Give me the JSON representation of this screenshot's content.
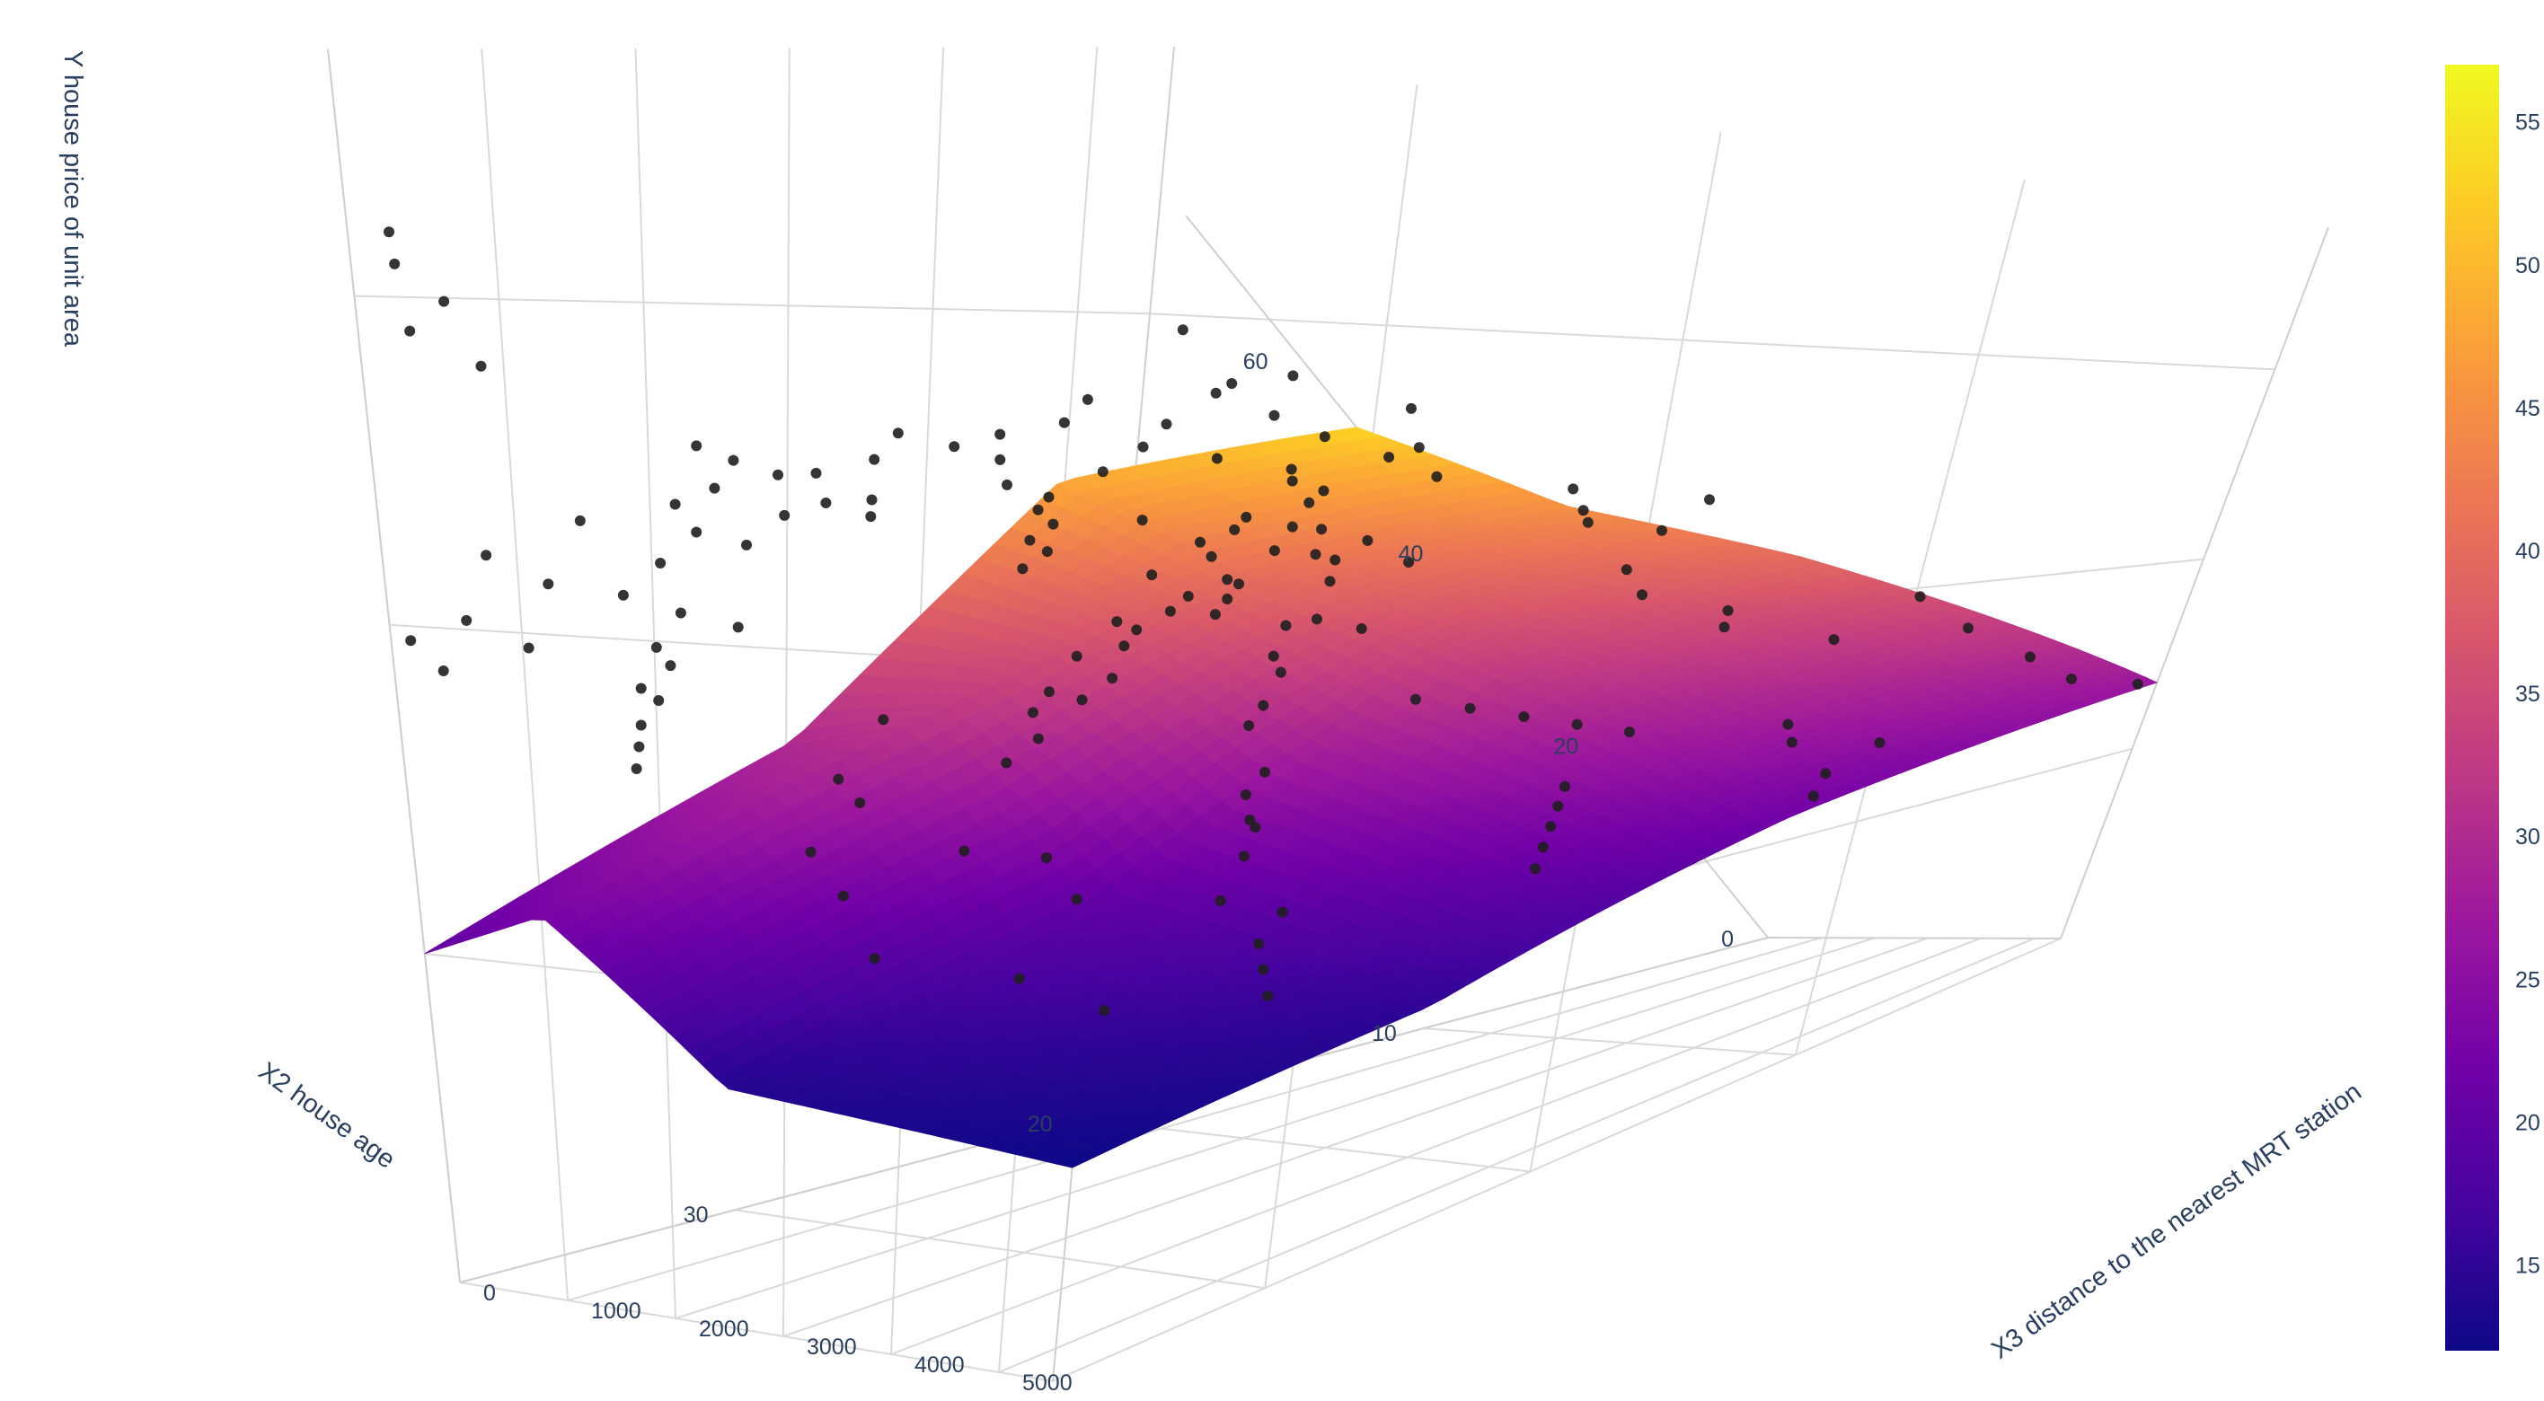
{
  "chart_data": {
    "type": "surface3d_with_scatter",
    "title": "",
    "axes": {
      "x": {
        "title": "X2 house age",
        "ticks": [
          10,
          20,
          30
        ],
        "range": [
          0,
          38
        ]
      },
      "y": {
        "title": "X3 distance to the nearest MRT station",
        "ticks": [
          0,
          1000,
          2000,
          3000,
          4000,
          5000
        ],
        "range": [
          0,
          5500
        ]
      },
      "z": {
        "title": "Y house price of unit area",
        "ticks": [
          0,
          20,
          40,
          60
        ],
        "range": [
          0,
          75
        ]
      }
    },
    "colorbar": {
      "colorscale": "plasma",
      "range": [
        12,
        57
      ],
      "ticks": [
        15,
        20,
        25,
        30,
        35,
        40,
        45,
        50,
        55
      ]
    },
    "surface": {
      "x": [
        0,
        12.5,
        25,
        38
      ],
      "y": [
        0,
        1000,
        2500,
        5500
      ],
      "z": [
        [
          53,
          45,
          40,
          27
        ],
        [
          48,
          41,
          34,
          22
        ],
        [
          30,
          32,
          20,
          15
        ],
        [
          20,
          23,
          14,
          12
        ]
      ]
    },
    "points": [
      [
        16.5,
        450,
        52
      ],
      [
        16.8,
        430,
        48
      ],
      [
        16.2,
        470,
        46
      ],
      [
        17.0,
        480,
        50
      ],
      [
        15.8,
        500,
        47
      ],
      [
        10.5,
        800,
        45
      ],
      [
        9.8,
        760,
        42
      ],
      [
        11.2,
        820,
        44
      ],
      [
        12.0,
        700,
        43
      ],
      [
        8.5,
        900,
        41
      ],
      [
        14.0,
        600,
        49
      ],
      [
        13.5,
        650,
        45
      ],
      [
        18.0,
        380,
        51
      ],
      [
        19.5,
        300,
        52
      ],
      [
        20.5,
        260,
        50
      ],
      [
        21.0,
        250,
        47
      ],
      [
        22.5,
        200,
        49
      ],
      [
        24.0,
        180,
        46
      ],
      [
        25.5,
        150,
        44
      ],
      [
        26.0,
        120,
        48
      ],
      [
        27.0,
        110,
        45
      ],
      [
        28.5,
        100,
        43
      ],
      [
        30.0,
        90,
        41
      ],
      [
        31.0,
        80,
        46
      ],
      [
        32.5,
        70,
        42
      ],
      [
        33.5,
        60,
        38
      ],
      [
        34.5,
        55,
        44
      ],
      [
        35.5,
        50,
        40
      ],
      [
        36.5,
        45,
        37
      ],
      [
        37.5,
        40,
        39
      ],
      [
        5.0,
        200,
        57
      ],
      [
        5.5,
        180,
        62
      ],
      [
        6.0,
        220,
        56
      ],
      [
        4.5,
        260,
        54
      ],
      [
        3.0,
        300,
        58
      ],
      [
        3.5,
        330,
        52
      ],
      [
        2.0,
        400,
        50
      ],
      [
        1.0,
        450,
        48
      ],
      [
        0.5,
        500,
        55
      ],
      [
        1.5,
        550,
        51
      ],
      [
        7.0,
        600,
        49
      ],
      [
        6.5,
        650,
        47
      ],
      [
        7.5,
        700,
        46
      ],
      [
        8.0,
        750,
        48
      ],
      [
        9.0,
        800,
        44
      ],
      [
        12.5,
        900,
        40
      ],
      [
        13.0,
        950,
        42
      ],
      [
        14.5,
        1000,
        39
      ],
      [
        15.5,
        1050,
        38
      ],
      [
        16.0,
        1100,
        41
      ],
      [
        17.5,
        1200,
        37
      ],
      [
        18.5,
        1300,
        36
      ],
      [
        19.0,
        1400,
        38
      ],
      [
        20.0,
        1500,
        34
      ],
      [
        21.5,
        1600,
        36
      ],
      [
        22.0,
        1700,
        33
      ],
      [
        23.5,
        1800,
        34
      ],
      [
        24.5,
        1900,
        31
      ],
      [
        25.0,
        2000,
        33
      ],
      [
        26.5,
        2100,
        30
      ],
      [
        10.0,
        1200,
        44
      ],
      [
        11.0,
        1300,
        42
      ],
      [
        9.5,
        1400,
        43
      ],
      [
        8.8,
        1500,
        41
      ],
      [
        12.2,
        1600,
        40
      ],
      [
        15.0,
        1800,
        37
      ],
      [
        16.5,
        2000,
        35
      ],
      [
        17.2,
        2200,
        34
      ],
      [
        18.8,
        2400,
        32
      ],
      [
        20.2,
        2600,
        31
      ],
      [
        14.0,
        2500,
        31
      ],
      [
        13.0,
        2700,
        30
      ],
      [
        12.0,
        2900,
        29
      ],
      [
        11.0,
        3100,
        28
      ],
      [
        10.0,
        3300,
        27
      ],
      [
        21.0,
        2900,
        28
      ],
      [
        22.5,
        3100,
        27
      ],
      [
        23.0,
        3300,
        25
      ],
      [
        24.0,
        3500,
        26
      ],
      [
        25.0,
        3700,
        24
      ],
      [
        30.0,
        500,
        40
      ],
      [
        31.5,
        600,
        38
      ],
      [
        29.0,
        700,
        39
      ],
      [
        32.0,
        800,
        37
      ],
      [
        33.0,
        900,
        35
      ],
      [
        34.0,
        1000,
        36
      ],
      [
        35.0,
        1200,
        34
      ],
      [
        36.0,
        1400,
        33
      ],
      [
        37.0,
        1600,
        32
      ],
      [
        31.0,
        1800,
        30
      ],
      [
        38.0,
        300,
        62
      ],
      [
        37.5,
        200,
        64
      ],
      [
        36.8,
        150,
        58
      ],
      [
        35.0,
        100,
        60
      ],
      [
        34.0,
        120,
        56
      ],
      [
        2.0,
        1500,
        47
      ],
      [
        3.0,
        1700,
        45
      ],
      [
        4.0,
        1900,
        44
      ],
      [
        2.5,
        2100,
        43
      ],
      [
        1.5,
        2300,
        46
      ],
      [
        6.0,
        2500,
        40
      ],
      [
        7.0,
        2800,
        38
      ],
      [
        5.0,
        3000,
        36
      ],
      [
        6.5,
        3300,
        35
      ],
      [
        4.0,
        3600,
        33
      ],
      [
        27.0,
        4000,
        22
      ],
      [
        26.0,
        4300,
        21
      ],
      [
        28.0,
        4600,
        20
      ],
      [
        29.0,
        4900,
        19
      ],
      [
        30.0,
        5200,
        18
      ],
      [
        8.0,
        4200,
        27
      ],
      [
        9.0,
        4500,
        26
      ],
      [
        7.0,
        4800,
        25
      ],
      [
        10.0,
        5100,
        24
      ],
      [
        11.5,
        5400,
        23
      ],
      [
        15.0,
        4000,
        25
      ],
      [
        16.0,
        4200,
        24
      ],
      [
        17.0,
        4400,
        23
      ],
      [
        18.0,
        4600,
        22
      ],
      [
        19.0,
        4800,
        21
      ],
      [
        20.0,
        1000,
        42
      ],
      [
        19.0,
        900,
        44
      ],
      [
        18.0,
        800,
        43
      ],
      [
        17.0,
        700,
        45
      ],
      [
        23.0,
        600,
        46
      ],
      [
        24.0,
        500,
        47
      ],
      [
        25.0,
        400,
        49
      ],
      [
        26.0,
        300,
        50
      ],
      [
        27.0,
        250,
        51
      ],
      [
        28.0,
        200,
        47
      ],
      [
        13.0,
        300,
        53
      ],
      [
        12.0,
        350,
        55
      ],
      [
        11.0,
        400,
        51
      ],
      [
        10.0,
        450,
        53
      ],
      [
        9.0,
        500,
        50
      ],
      [
        14.0,
        1300,
        40
      ],
      [
        15.0,
        1400,
        39
      ],
      [
        16.0,
        1500,
        38
      ],
      [
        13.0,
        1600,
        37
      ],
      [
        12.0,
        1700,
        36
      ],
      [
        0.5,
        3500,
        36
      ],
      [
        1.0,
        4000,
        33
      ],
      [
        0.8,
        4500,
        30
      ],
      [
        1.2,
        5000,
        28
      ],
      [
        0.3,
        5400,
        27
      ],
      [
        35.0,
        2500,
        27
      ],
      [
        36.0,
        3000,
        25
      ],
      [
        37.0,
        3500,
        22
      ],
      [
        34.0,
        4000,
        20
      ],
      [
        33.0,
        4500,
        18
      ],
      [
        29.0,
        3000,
        25
      ],
      [
        30.0,
        3500,
        23
      ],
      [
        31.0,
        2800,
        26
      ],
      [
        32.0,
        2200,
        29
      ],
      [
        28.0,
        1500,
        33
      ]
    ]
  }
}
